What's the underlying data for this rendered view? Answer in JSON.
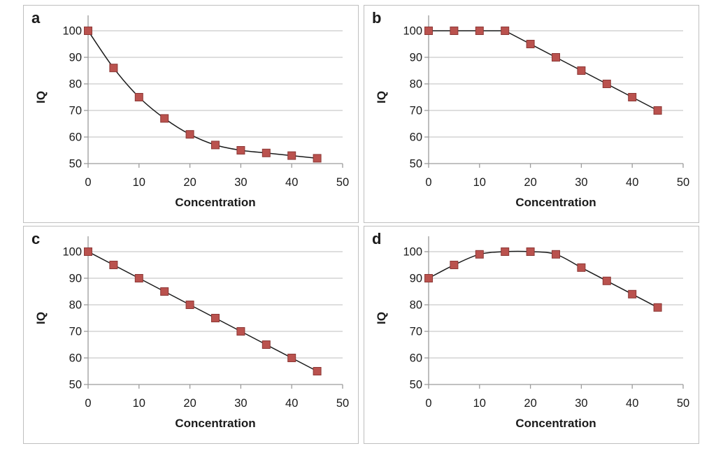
{
  "figure": {
    "background": "#FFFFFF",
    "style": {
      "marker_fill": "#BA524E",
      "marker_stroke": "#8C3836",
      "line_color": "#1A1A1A",
      "grid_color": "#C9C9C9",
      "axis_color": "#9C9C9C",
      "text_color": "#1A1A1A",
      "panel_border_color": "#BFBFBF"
    }
  },
  "chart_data": [
    {
      "type": "line",
      "panel_label": "a",
      "xlabel": "Concentration",
      "ylabel": "IQ",
      "x": [
        0,
        5,
        10,
        15,
        20,
        25,
        30,
        35,
        40,
        45
      ],
      "values": [
        100,
        86,
        75,
        67,
        61,
        57,
        55,
        54,
        53,
        52
      ],
      "xlim": [
        0,
        50
      ],
      "ylim": [
        50,
        100
      ],
      "xticks": [
        0,
        10,
        20,
        30,
        40,
        50
      ],
      "yticks": [
        50,
        60,
        70,
        80,
        90,
        100
      ],
      "grid": true,
      "legend": null,
      "smooth": true,
      "marker": "square"
    },
    {
      "type": "line",
      "panel_label": "b",
      "xlabel": "Concentration",
      "ylabel": "IQ",
      "x": [
        0,
        5,
        10,
        15,
        20,
        25,
        30,
        35,
        40,
        45
      ],
      "values": [
        100,
        100,
        100,
        100,
        95,
        90,
        85,
        80,
        75,
        70
      ],
      "xlim": [
        0,
        50
      ],
      "ylim": [
        50,
        100
      ],
      "xticks": [
        0,
        10,
        20,
        30,
        40,
        50
      ],
      "yticks": [
        50,
        60,
        70,
        80,
        90,
        100
      ],
      "grid": true,
      "legend": null,
      "smooth": false,
      "marker": "square"
    },
    {
      "type": "line",
      "panel_label": "c",
      "xlabel": "Concentration",
      "ylabel": "IQ",
      "x": [
        0,
        5,
        10,
        15,
        20,
        25,
        30,
        35,
        40,
        45
      ],
      "values": [
        100,
        95,
        90,
        85,
        80,
        75,
        70,
        65,
        60,
        55
      ],
      "xlim": [
        0,
        50
      ],
      "ylim": [
        50,
        100
      ],
      "xticks": [
        0,
        10,
        20,
        30,
        40,
        50
      ],
      "yticks": [
        50,
        60,
        70,
        80,
        90,
        100
      ],
      "grid": true,
      "legend": null,
      "smooth": false,
      "marker": "square"
    },
    {
      "type": "line",
      "panel_label": "d",
      "xlabel": "Concentration",
      "ylabel": "IQ",
      "x": [
        0,
        5,
        10,
        15,
        20,
        25,
        30,
        35,
        40,
        45
      ],
      "values": [
        90,
        95,
        99,
        100,
        100,
        99,
        94,
        89,
        84,
        79
      ],
      "xlim": [
        0,
        50
      ],
      "ylim": [
        50,
        100
      ],
      "xticks": [
        0,
        10,
        20,
        30,
        40,
        50
      ],
      "yticks": [
        50,
        60,
        70,
        80,
        90,
        100
      ],
      "grid": true,
      "legend": null,
      "smooth": true,
      "marker": "square"
    }
  ]
}
